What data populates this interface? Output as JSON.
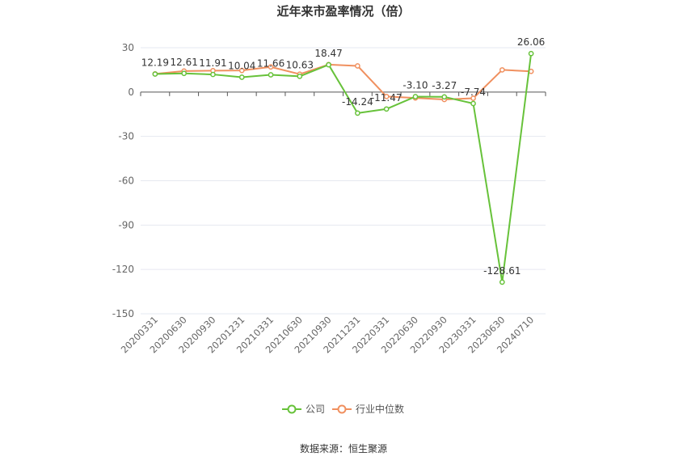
{
  "chart_data": {
    "type": "line",
    "title": "近年来市盈率情况（倍）",
    "categories": [
      "20200331",
      "20200630",
      "20200930",
      "20201231",
      "20210331",
      "20210630",
      "20210930",
      "20211231",
      "20220331",
      "20220630",
      "20220930",
      "20230331",
      "20230630",
      "20240710"
    ],
    "ylim": [
      -150,
      30
    ],
    "yticks": [
      30,
      0,
      -30,
      -60,
      -90,
      -120,
      -150
    ],
    "grid": true,
    "legend_position": "bottom",
    "series": [
      {
        "name": "公司",
        "color": "#67c23a",
        "values": [
          12.19,
          12.61,
          11.91,
          10.04,
          11.66,
          10.63,
          18.47,
          -14.24,
          -11.47,
          -3.1,
          -3.27,
          -7.74,
          -128.61,
          26.06
        ],
        "labels": [
          "12.19",
          "12.61",
          "11.91",
          "10.04",
          "11.66",
          "10.63",
          "18.47",
          "-14.24",
          "-11.47",
          "-3.10",
          "-3.27",
          "-7.74",
          "-128.61",
          "26.06"
        ]
      },
      {
        "name": "行业中位数",
        "color": "#f0905f",
        "values": [
          12.3,
          14.2,
          14.5,
          14.6,
          17.0,
          12.1,
          18.6,
          17.7,
          -3.0,
          -4.0,
          -5.0,
          -4.2,
          15.0,
          14.0
        ]
      }
    ],
    "source": "数据来源：恒生聚源"
  }
}
